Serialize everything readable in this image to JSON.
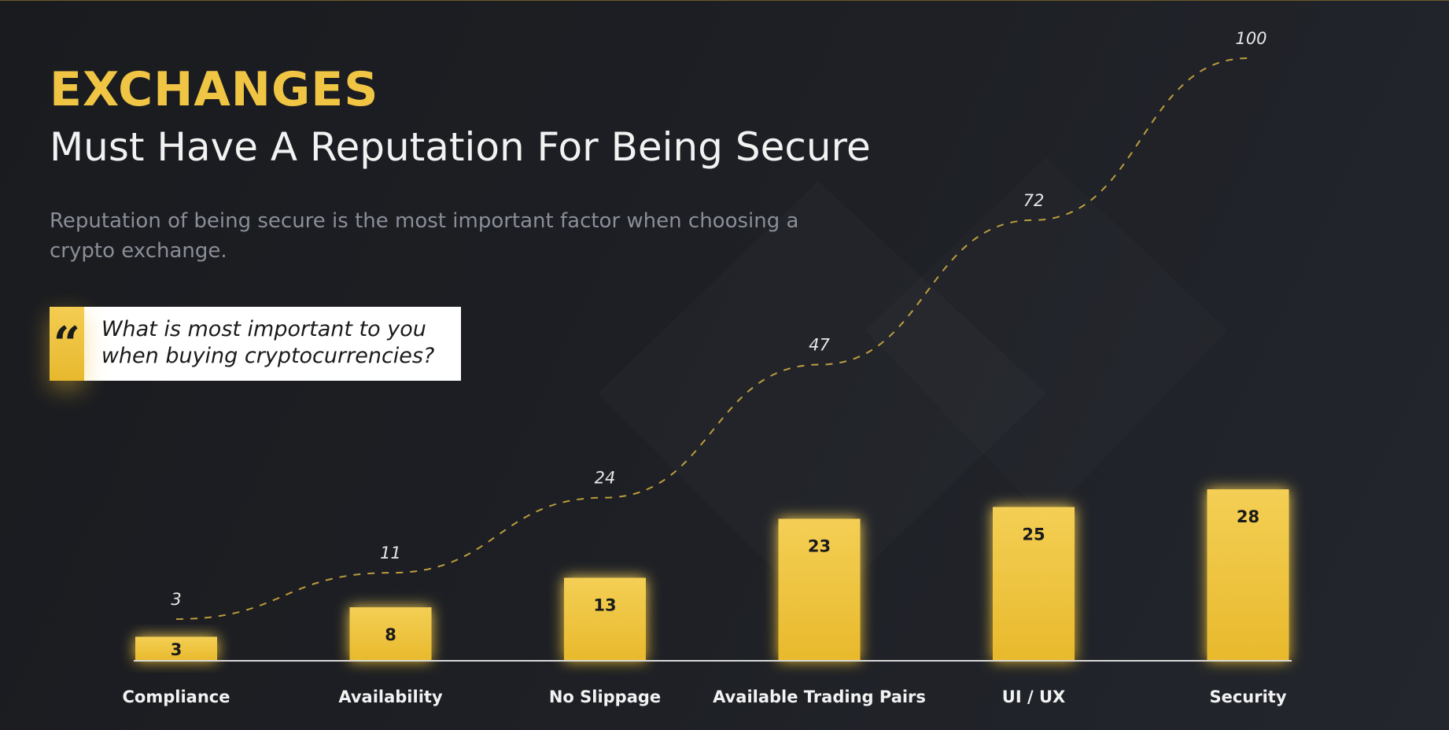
{
  "header": {
    "title": "EXCHANGES",
    "subtitle": "Must Have A Reputation For Being Secure",
    "description": "Reputation of being secure is the most important factor when choosing a crypto exchange."
  },
  "quote": {
    "mark": "“",
    "text": "What is most important to you when buying cryptocurrencies?"
  },
  "colors": {
    "accent": "#f0c544",
    "bar": "#f0c544",
    "background": "#1d1f24"
  },
  "chart_data": {
    "type": "bar",
    "categories": [
      "Compliance",
      "Availability",
      "No Slippage",
      "Available Trading Pairs",
      "UI / UX",
      "Security"
    ],
    "series": [
      {
        "type": "bar",
        "values": [
          3,
          8,
          13,
          23,
          25,
          28
        ]
      },
      {
        "type": "line",
        "style": "dashed",
        "values": [
          3,
          11,
          24,
          47,
          72,
          100
        ]
      }
    ],
    "ylim": [
      0,
      100
    ],
    "grid": false,
    "legend": "none",
    "xlabel": "",
    "ylabel": ""
  }
}
